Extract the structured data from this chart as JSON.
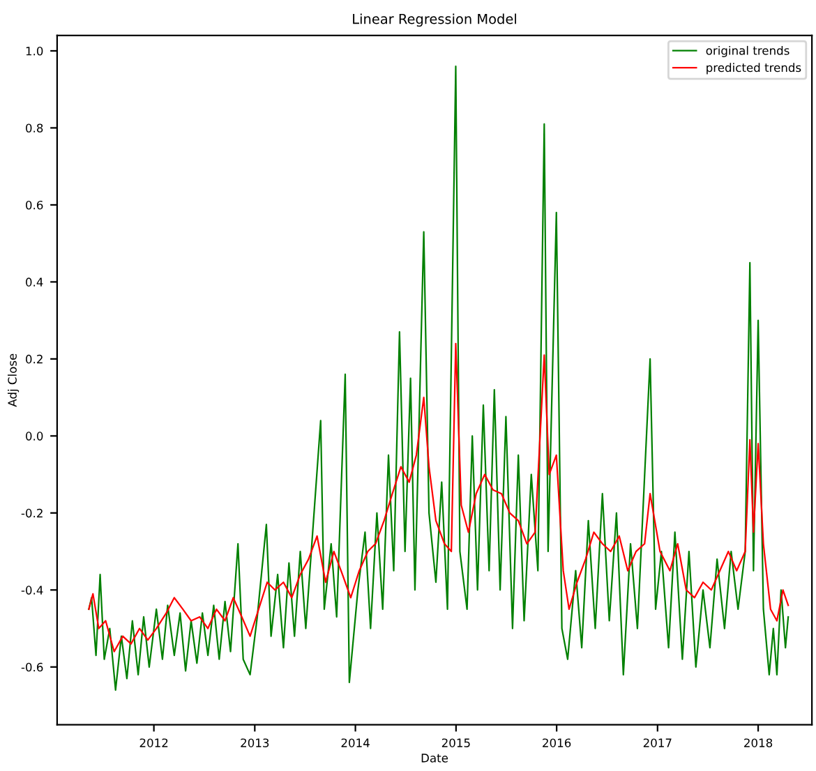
{
  "chart_data": {
    "type": "line",
    "title": "Linear Regression Model",
    "xlabel": "Date",
    "ylabel": "Adj Close",
    "legend": "top right",
    "grid": false,
    "xlim": [
      "2011-01-15",
      "2018-07-15"
    ],
    "xticks": [
      {
        "value": "2012-01-01",
        "label": "2012"
      },
      {
        "value": "2013-01-01",
        "label": "2013"
      },
      {
        "value": "2014-01-01",
        "label": "2014"
      },
      {
        "value": "2015-01-01",
        "label": "2015"
      },
      {
        "value": "2016-01-01",
        "label": "2016"
      },
      {
        "value": "2017-01-01",
        "label": "2017"
      },
      {
        "value": "2018-01-01",
        "label": "2018"
      }
    ],
    "ylim": [
      -0.75,
      1.04
    ],
    "yticks": [
      -0.6,
      -0.4,
      -0.2,
      {
        "value": 0,
        "label": "0.0"
      },
      0.2,
      0.4,
      0.6,
      0.8,
      {
        "value": 1,
        "label": "1.0"
      }
    ],
    "series": [
      {
        "name": "original trends",
        "color": "#008000",
        "x": [
          "2011-05-10",
          "2011-05-20",
          "2011-06-05",
          "2011-06-20",
          "2011-07-05",
          "2011-07-25",
          "2011-08-15",
          "2011-09-05",
          "2011-09-25",
          "2011-10-15",
          "2011-11-05",
          "2011-11-25",
          "2011-12-15",
          "2012-01-10",
          "2012-02-01",
          "2012-02-20",
          "2012-03-15",
          "2012-04-05",
          "2012-04-25",
          "2012-05-15",
          "2012-06-05",
          "2012-06-25",
          "2012-07-15",
          "2012-08-05",
          "2012-08-25",
          "2012-09-15",
          "2012-10-05",
          "2012-11-01",
          "2012-11-20",
          "2012-12-15",
          "2013-01-10",
          "2013-02-12",
          "2013-03-01",
          "2013-03-25",
          "2013-04-15",
          "2013-05-05",
          "2013-05-25",
          "2013-06-15",
          "2013-07-05",
          "2013-08-28",
          "2013-09-10",
          "2013-10-05",
          "2013-10-25",
          "2013-11-25",
          "2013-12-10",
          "2014-01-10",
          "2014-02-05",
          "2014-02-25",
          "2014-03-20",
          "2014-04-10",
          "2014-05-01",
          "2014-05-20",
          "2014-06-10",
          "2014-06-30",
          "2014-07-20",
          "2014-08-05",
          "2014-09-06",
          "2014-09-25",
          "2014-10-20",
          "2014-11-10",
          "2014-12-01",
          "2014-12-31",
          "2015-01-15",
          "2015-02-10",
          "2015-03-01",
          "2015-03-20",
          "2015-04-10",
          "2015-05-01",
          "2015-05-20",
          "2015-06-10",
          "2015-07-01",
          "2015-07-25",
          "2015-08-15",
          "2015-09-05",
          "2015-10-01",
          "2015-10-25",
          "2015-11-17",
          "2015-12-01",
          "2015-12-31",
          "2016-01-20",
          "2016-02-10",
          "2016-03-10",
          "2016-04-01",
          "2016-04-25",
          "2016-05-20",
          "2016-06-15",
          "2016-07-10",
          "2016-08-05",
          "2016-08-30",
          "2016-09-25",
          "2016-10-20",
          "2016-12-05",
          "2016-12-25",
          "2017-01-15",
          "2017-02-10",
          "2017-03-05",
          "2017-04-01",
          "2017-04-25",
          "2017-05-20",
          "2017-06-15",
          "2017-07-10",
          "2017-08-05",
          "2017-09-01",
          "2017-09-25",
          "2017-10-20",
          "2017-11-15",
          "2017-12-02",
          "2017-12-15",
          "2018-01-01",
          "2018-01-20",
          "2018-02-10",
          "2018-02-25",
          "2018-03-10",
          "2018-03-25",
          "2018-04-10",
          "2018-04-20"
        ],
        "values": [
          -0.45,
          -0.42,
          -0.57,
          -0.36,
          -0.58,
          -0.5,
          -0.66,
          -0.52,
          -0.63,
          -0.48,
          -0.62,
          -0.47,
          -0.6,
          -0.45,
          -0.58,
          -0.44,
          -0.57,
          -0.46,
          -0.61,
          -0.48,
          -0.59,
          -0.46,
          -0.57,
          -0.44,
          -0.58,
          -0.43,
          -0.56,
          -0.28,
          -0.58,
          -0.62,
          -0.47,
          -0.23,
          -0.52,
          -0.36,
          -0.55,
          -0.33,
          -0.52,
          -0.3,
          -0.5,
          0.04,
          -0.45,
          -0.28,
          -0.47,
          0.16,
          -0.64,
          -0.4,
          -0.25,
          -0.5,
          -0.2,
          -0.45,
          -0.05,
          -0.35,
          0.27,
          -0.3,
          0.15,
          -0.4,
          0.53,
          -0.2,
          -0.38,
          -0.12,
          -0.45,
          0.96,
          -0.3,
          -0.45,
          0.0,
          -0.4,
          0.08,
          -0.35,
          0.12,
          -0.4,
          0.05,
          -0.5,
          -0.05,
          -0.48,
          -0.1,
          -0.35,
          0.81,
          -0.3,
          0.58,
          -0.5,
          -0.58,
          -0.35,
          -0.55,
          -0.22,
          -0.5,
          -0.15,
          -0.48,
          -0.2,
          -0.62,
          -0.28,
          -0.5,
          0.2,
          -0.45,
          -0.3,
          -0.55,
          -0.25,
          -0.58,
          -0.3,
          -0.6,
          -0.4,
          -0.55,
          -0.32,
          -0.5,
          -0.3,
          -0.45,
          -0.3,
          0.45,
          -0.35,
          0.3,
          -0.45,
          -0.62,
          -0.5,
          -0.62,
          -0.4,
          -0.55,
          -0.47
        ]
      },
      {
        "name": "predicted trends",
        "color": "#ff0000",
        "x": [
          "2011-05-10",
          "2011-05-25",
          "2011-06-15",
          "2011-07-10",
          "2011-08-10",
          "2011-09-10",
          "2011-10-10",
          "2011-11-10",
          "2011-12-10",
          "2012-01-10",
          "2012-02-15",
          "2012-03-15",
          "2012-04-15",
          "2012-05-15",
          "2012-06-15",
          "2012-07-15",
          "2012-08-15",
          "2012-09-15",
          "2012-10-15",
          "2012-11-15",
          "2012-12-15",
          "2013-01-15",
          "2013-02-15",
          "2013-03-15",
          "2013-04-15",
          "2013-05-15",
          "2013-06-15",
          "2013-07-15",
          "2013-08-15",
          "2013-09-15",
          "2013-10-15",
          "2013-11-15",
          "2013-12-15",
          "2014-01-15",
          "2014-02-15",
          "2014-03-15",
          "2014-04-15",
          "2014-05-15",
          "2014-06-15",
          "2014-07-15",
          "2014-08-10",
          "2014-09-06",
          "2014-09-25",
          "2014-10-20",
          "2014-11-20",
          "2014-12-15",
          "2014-12-31",
          "2015-01-20",
          "2015-02-15",
          "2015-03-15",
          "2015-04-15",
          "2015-05-15",
          "2015-06-15",
          "2015-07-15",
          "2015-08-15",
          "2015-09-15",
          "2015-10-15",
          "2015-11-17",
          "2015-12-05",
          "2015-12-31",
          "2016-01-25",
          "2016-02-15",
          "2016-03-15",
          "2016-04-15",
          "2016-05-15",
          "2016-06-15",
          "2016-07-15",
          "2016-08-15",
          "2016-09-15",
          "2016-10-15",
          "2016-11-15",
          "2016-12-05",
          "2017-01-10",
          "2017-02-15",
          "2017-03-15",
          "2017-04-15",
          "2017-05-15",
          "2017-06-15",
          "2017-07-15",
          "2017-08-15",
          "2017-09-15",
          "2017-10-15",
          "2017-11-15",
          "2017-12-02",
          "2017-12-15",
          "2018-01-01",
          "2018-01-20",
          "2018-02-15",
          "2018-03-10",
          "2018-04-01",
          "2018-04-20"
        ],
        "values": [
          -0.45,
          -0.41,
          -0.5,
          -0.48,
          -0.56,
          -0.52,
          -0.54,
          -0.5,
          -0.53,
          -0.5,
          -0.46,
          -0.42,
          -0.45,
          -0.48,
          -0.47,
          -0.5,
          -0.45,
          -0.48,
          -0.42,
          -0.47,
          -0.52,
          -0.45,
          -0.38,
          -0.4,
          -0.38,
          -0.42,
          -0.36,
          -0.32,
          -0.26,
          -0.38,
          -0.3,
          -0.36,
          -0.42,
          -0.35,
          -0.3,
          -0.28,
          -0.22,
          -0.15,
          -0.08,
          -0.12,
          -0.05,
          0.1,
          -0.08,
          -0.22,
          -0.28,
          -0.3,
          0.24,
          -0.18,
          -0.25,
          -0.15,
          -0.1,
          -0.14,
          -0.15,
          -0.2,
          -0.22,
          -0.28,
          -0.25,
          0.21,
          -0.1,
          -0.05,
          -0.35,
          -0.45,
          -0.38,
          -0.32,
          -0.25,
          -0.28,
          -0.3,
          -0.26,
          -0.35,
          -0.3,
          -0.28,
          -0.15,
          -0.3,
          -0.35,
          -0.28,
          -0.4,
          -0.42,
          -0.38,
          -0.4,
          -0.35,
          -0.3,
          -0.35,
          -0.3,
          -0.01,
          -0.25,
          -0.02,
          -0.28,
          -0.45,
          -0.48,
          -0.4,
          -0.44
        ]
      }
    ]
  }
}
